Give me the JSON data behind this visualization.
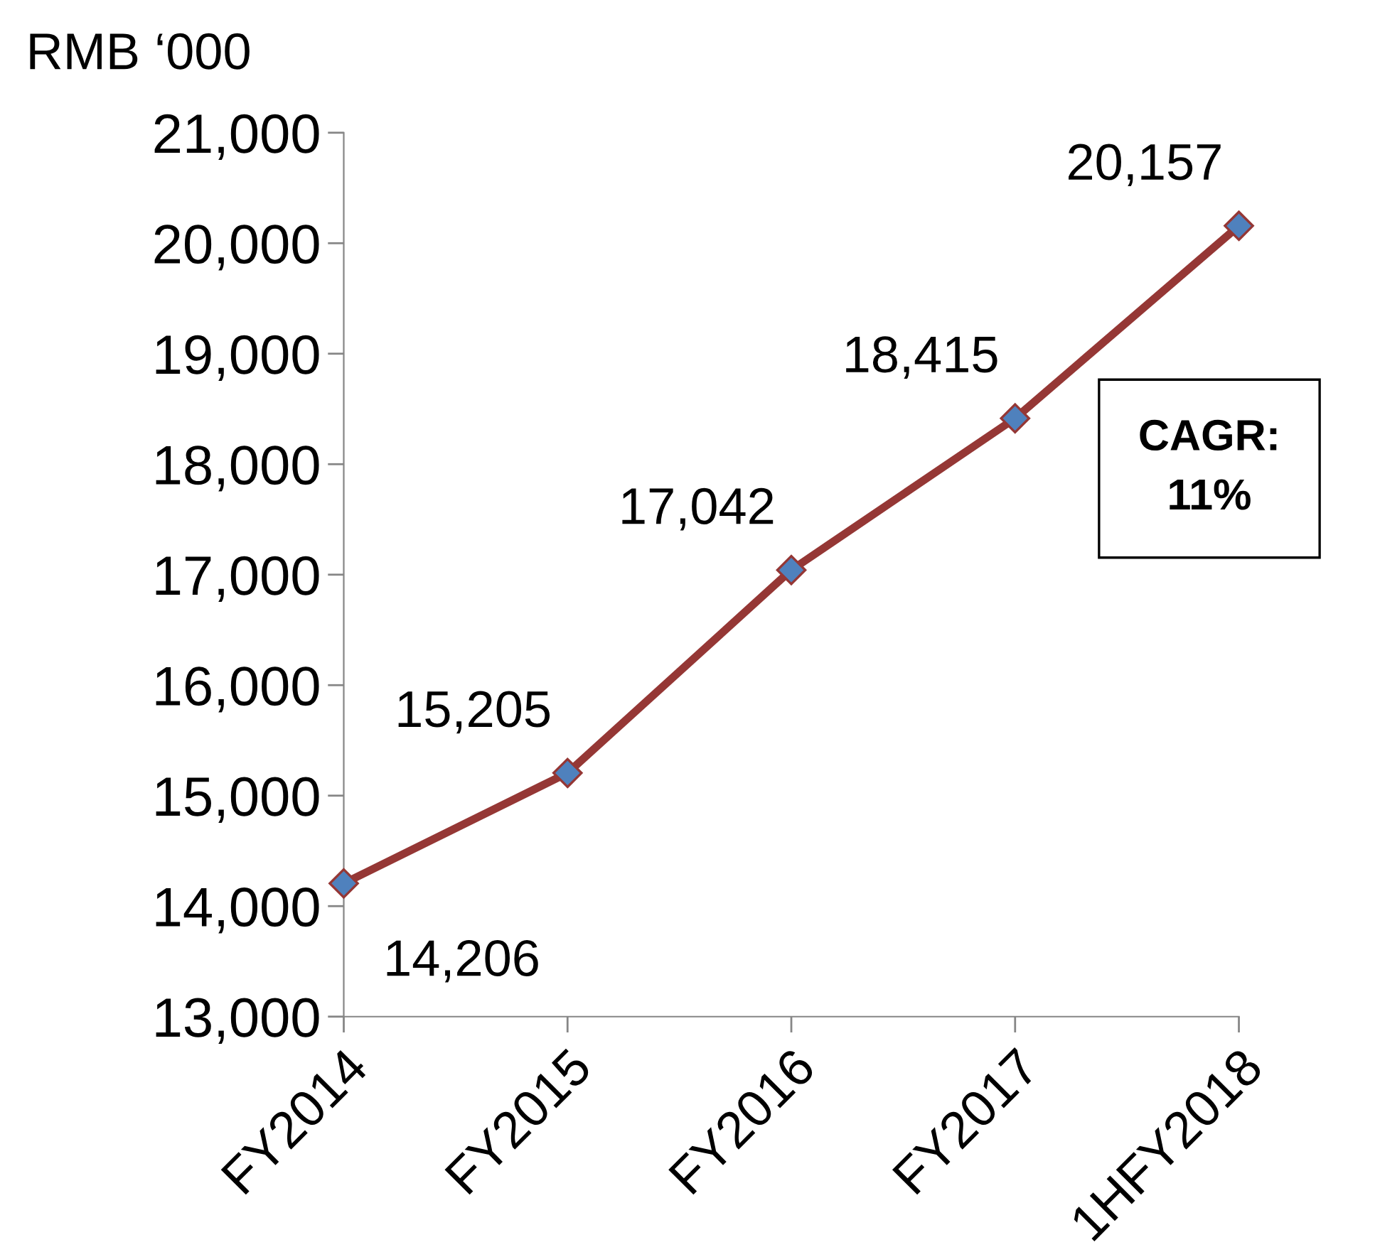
{
  "chart_data": {
    "type": "line",
    "ylabel": "RMB ‘000",
    "categories": [
      "FY2014",
      "FY2015",
      "FY2016",
      "FY2017",
      "1HFY2018"
    ],
    "series": [
      {
        "color": "#953735",
        "values": [
          14206,
          15205,
          17042,
          18415,
          20157
        ],
        "value_labels": [
          "14,206",
          "15,205",
          "17,042",
          "18,415",
          "20,157"
        ]
      }
    ],
    "ylim": [
      13000,
      21000
    ],
    "yticks": [
      {
        "value": 13000,
        "label": "13,000"
      },
      {
        "value": 14000,
        "label": "14,000"
      },
      {
        "value": 15000,
        "label": "15,000"
      },
      {
        "value": 16000,
        "label": "16,000"
      },
      {
        "value": 17000,
        "label": "17,000"
      },
      {
        "value": 18000,
        "label": "18,000"
      },
      {
        "value": 19000,
        "label": "19,000"
      },
      {
        "value": 20000,
        "label": "20,000"
      },
      {
        "value": 21000,
        "label": "21,000"
      }
    ],
    "marker": "diamond",
    "line_style": "solid",
    "grid": false,
    "legend": false,
    "annotations": [
      "CAGR:\n11%"
    ]
  }
}
